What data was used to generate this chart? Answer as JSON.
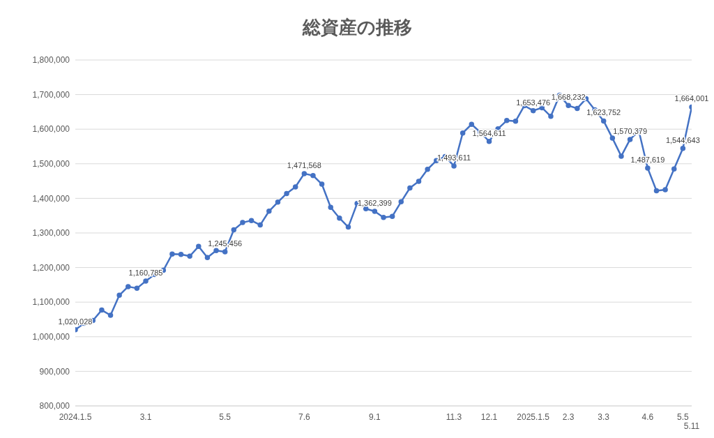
{
  "chart_data": {
    "type": "line",
    "title": "総資産の推移",
    "categories": [
      "2024.1.5",
      null,
      null,
      null,
      null,
      null,
      null,
      null,
      "3.1",
      null,
      null,
      null,
      null,
      null,
      null,
      null,
      null,
      "5.5",
      null,
      null,
      null,
      null,
      null,
      null,
      null,
      null,
      "7.6",
      null,
      null,
      null,
      null,
      null,
      null,
      null,
      "9.1",
      null,
      null,
      null,
      null,
      null,
      null,
      null,
      null,
      "11.3",
      null,
      null,
      null,
      "12.1",
      null,
      null,
      null,
      null,
      "2025.1.5",
      null,
      null,
      null,
      "2.3",
      null,
      null,
      null,
      "3.3",
      null,
      null,
      null,
      null,
      "4.6",
      null,
      null,
      null,
      "5.5",
      "5.11"
    ],
    "series": [
      {
        "color": "#4472c4",
        "values": [
          1020028,
          1039000,
          1047000,
          1077000,
          1062000,
          1120000,
          1145000,
          1140000,
          1160785,
          1180000,
          1192000,
          1239000,
          1238000,
          1233000,
          1261000,
          1229000,
          1249000,
          1245456,
          1309000,
          1330000,
          1336000,
          1323000,
          1363000,
          1389000,
          1414000,
          1433000,
          1471568,
          1466000,
          1441000,
          1374000,
          1343000,
          1317000,
          1385000,
          1370000,
          1362399,
          1345000,
          1348000,
          1390000,
          1430000,
          1449000,
          1484000,
          1509000,
          1521000,
          1493611,
          1589000,
          1614000,
          1591000,
          1564611,
          1601000,
          1625000,
          1623000,
          1668000,
          1653476,
          1662000,
          1637000,
          1698000,
          1668232,
          1660000,
          1688000,
          1656000,
          1623752,
          1574000,
          1522000,
          1570379,
          1595000,
          1487619,
          1422000,
          1425000,
          1485000,
          1544643,
          1664001
        ],
        "value_labels": [
          "1,020,028",
          null,
          null,
          null,
          null,
          null,
          null,
          null,
          "1,160,785",
          null,
          null,
          null,
          null,
          null,
          null,
          null,
          null,
          "1,245,456",
          null,
          null,
          null,
          null,
          null,
          null,
          null,
          null,
          "1,471,568",
          null,
          null,
          null,
          null,
          null,
          null,
          null,
          "1,362,399",
          null,
          null,
          null,
          null,
          null,
          null,
          null,
          null,
          "1,493,611",
          null,
          null,
          null,
          "1,564,611",
          null,
          null,
          null,
          null,
          "1,653,476",
          null,
          null,
          null,
          "1,668,232",
          null,
          null,
          null,
          "1,623,752",
          null,
          null,
          "1,570,379",
          null,
          "1,487,619",
          null,
          null,
          null,
          "1,544,643",
          "1,664,001"
        ]
      }
    ],
    "ylim": [
      800000,
      1800000
    ],
    "yticks": [
      {
        "value": 800000,
        "label": "800,000"
      },
      {
        "value": 900000,
        "label": "900,000"
      },
      {
        "value": 1000000,
        "label": "1,000,000"
      },
      {
        "value": 1100000,
        "label": "1,100,000"
      },
      {
        "value": 1200000,
        "label": "1,200,000"
      },
      {
        "value": 1300000,
        "label": "1,300,000"
      },
      {
        "value": 1400000,
        "label": "1,400,000"
      },
      {
        "value": 1500000,
        "label": "1,500,000"
      },
      {
        "value": 1600000,
        "label": "1,600,000"
      },
      {
        "value": 1700000,
        "label": "1,700,000"
      },
      {
        "value": 1800000,
        "label": "1,800,000"
      }
    ],
    "grid": "y",
    "legend": false,
    "marker": "circle",
    "line_style": "solid"
  }
}
